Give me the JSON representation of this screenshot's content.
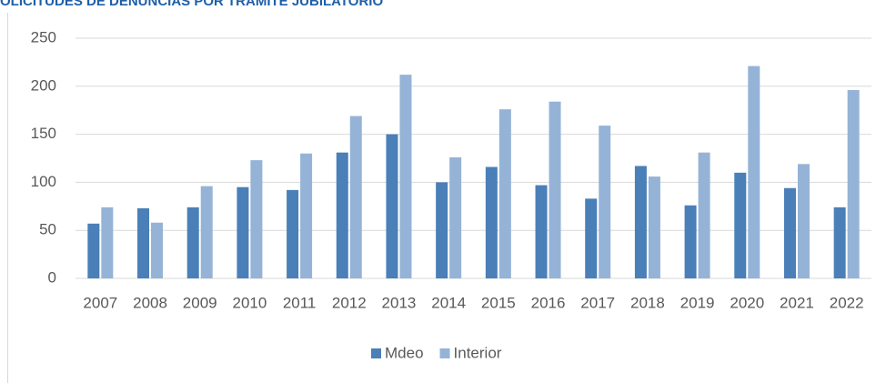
{
  "chart_data": {
    "type": "bar",
    "title": "OLICITUDES DE DENUNCIAS POR TRAMITE JUBILATORIO",
    "categories": [
      "2007",
      "2008",
      "2009",
      "2010",
      "2011",
      "2012",
      "2013",
      "2014",
      "2015",
      "2016",
      "2017",
      "2018",
      "2019",
      "2020",
      "2021",
      "2022"
    ],
    "series": [
      {
        "name": "Mdeo",
        "color": "#4a7fb8",
        "values": [
          57,
          73,
          74,
          95,
          92,
          131,
          150,
          100,
          116,
          97,
          83,
          117,
          76,
          110,
          94,
          74
        ]
      },
      {
        "name": "Interior",
        "color": "#95b3d7",
        "values": [
          74,
          58,
          96,
          123,
          130,
          169,
          212,
          126,
          176,
          184,
          159,
          106,
          131,
          221,
          119,
          196
        ]
      }
    ],
    "ylim": [
      0,
      250
    ],
    "yticks": [
      0,
      50,
      100,
      150,
      200,
      250
    ],
    "grid": true,
    "legend": "bottom"
  }
}
